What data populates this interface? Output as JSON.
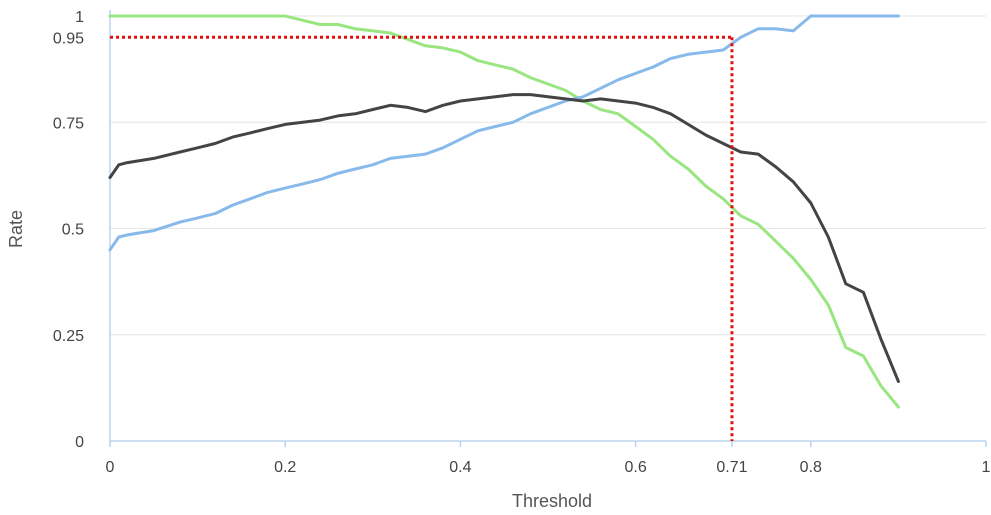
{
  "chart_data": {
    "type": "line",
    "xlabel": "Threshold",
    "ylabel": "Rate",
    "xlim": [
      0,
      1
    ],
    "ylim": [
      0,
      1
    ],
    "x_ticks": [
      0,
      0.2,
      0.4,
      0.6,
      0.71,
      0.8,
      1
    ],
    "x_tick_labels": [
      "0",
      "0.2",
      "0.4",
      "0.6",
      "0.71",
      "0.8",
      "1"
    ],
    "y_ticks": [
      0,
      0.25,
      0.5,
      0.75,
      0.95,
      1
    ],
    "y_tick_labels": [
      "0",
      "0.25",
      "0.5",
      "0.75",
      "0.95",
      "1"
    ],
    "grid": "horizontal",
    "reference_lines": {
      "color": "#e01010",
      "horizontal_y": 0.95,
      "vertical_x": 0.71
    },
    "series": [
      {
        "color": "#99e680",
        "x": [
          0,
          0.05,
          0.1,
          0.15,
          0.2,
          0.22,
          0.24,
          0.26,
          0.28,
          0.3,
          0.32,
          0.34,
          0.36,
          0.38,
          0.4,
          0.42,
          0.44,
          0.46,
          0.48,
          0.5,
          0.52,
          0.54,
          0.56,
          0.58,
          0.6,
          0.62,
          0.64,
          0.66,
          0.68,
          0.7,
          0.72,
          0.74,
          0.76,
          0.78,
          0.8,
          0.82,
          0.84,
          0.86,
          0.88,
          0.9
        ],
        "values": [
          1.0,
          1.0,
          1.0,
          1.0,
          1.0,
          0.99,
          0.98,
          0.98,
          0.97,
          0.965,
          0.96,
          0.945,
          0.93,
          0.925,
          0.915,
          0.895,
          0.885,
          0.875,
          0.855,
          0.84,
          0.825,
          0.8,
          0.78,
          0.77,
          0.74,
          0.71,
          0.67,
          0.64,
          0.6,
          0.57,
          0.53,
          0.51,
          0.47,
          0.43,
          0.38,
          0.32,
          0.22,
          0.2,
          0.13,
          0.08
        ]
      },
      {
        "color": "#87b9ea",
        "x": [
          0,
          0.01,
          0.02,
          0.05,
          0.08,
          0.1,
          0.12,
          0.14,
          0.16,
          0.18,
          0.2,
          0.22,
          0.24,
          0.26,
          0.28,
          0.3,
          0.32,
          0.34,
          0.36,
          0.38,
          0.4,
          0.42,
          0.44,
          0.46,
          0.48,
          0.5,
          0.52,
          0.54,
          0.56,
          0.58,
          0.6,
          0.62,
          0.64,
          0.66,
          0.68,
          0.7,
          0.72,
          0.74,
          0.76,
          0.78,
          0.8,
          0.82,
          0.84,
          0.86,
          0.88,
          0.9
        ],
        "values": [
          0.45,
          0.48,
          0.485,
          0.495,
          0.515,
          0.525,
          0.535,
          0.555,
          0.57,
          0.585,
          0.595,
          0.605,
          0.615,
          0.63,
          0.64,
          0.65,
          0.665,
          0.67,
          0.675,
          0.69,
          0.71,
          0.73,
          0.74,
          0.75,
          0.77,
          0.785,
          0.8,
          0.81,
          0.83,
          0.85,
          0.865,
          0.88,
          0.9,
          0.91,
          0.915,
          0.92,
          0.95,
          0.97,
          0.97,
          0.965,
          1.0,
          1.0,
          1.0,
          1.0,
          1.0,
          1.0
        ]
      },
      {
        "color": "#444444",
        "x": [
          0,
          0.01,
          0.02,
          0.05,
          0.08,
          0.1,
          0.12,
          0.14,
          0.16,
          0.18,
          0.2,
          0.22,
          0.24,
          0.26,
          0.28,
          0.3,
          0.32,
          0.34,
          0.36,
          0.38,
          0.4,
          0.42,
          0.44,
          0.46,
          0.48,
          0.5,
          0.52,
          0.54,
          0.56,
          0.58,
          0.6,
          0.62,
          0.64,
          0.66,
          0.68,
          0.7,
          0.72,
          0.74,
          0.76,
          0.78,
          0.8,
          0.82,
          0.84,
          0.86,
          0.88,
          0.9
        ],
        "values": [
          0.62,
          0.65,
          0.655,
          0.665,
          0.68,
          0.69,
          0.7,
          0.715,
          0.725,
          0.735,
          0.745,
          0.75,
          0.755,
          0.765,
          0.77,
          0.78,
          0.79,
          0.785,
          0.775,
          0.79,
          0.8,
          0.805,
          0.81,
          0.815,
          0.815,
          0.81,
          0.805,
          0.8,
          0.805,
          0.8,
          0.795,
          0.785,
          0.77,
          0.745,
          0.72,
          0.7,
          0.68,
          0.675,
          0.645,
          0.61,
          0.56,
          0.48,
          0.37,
          0.35,
          0.24,
          0.14
        ]
      }
    ]
  }
}
